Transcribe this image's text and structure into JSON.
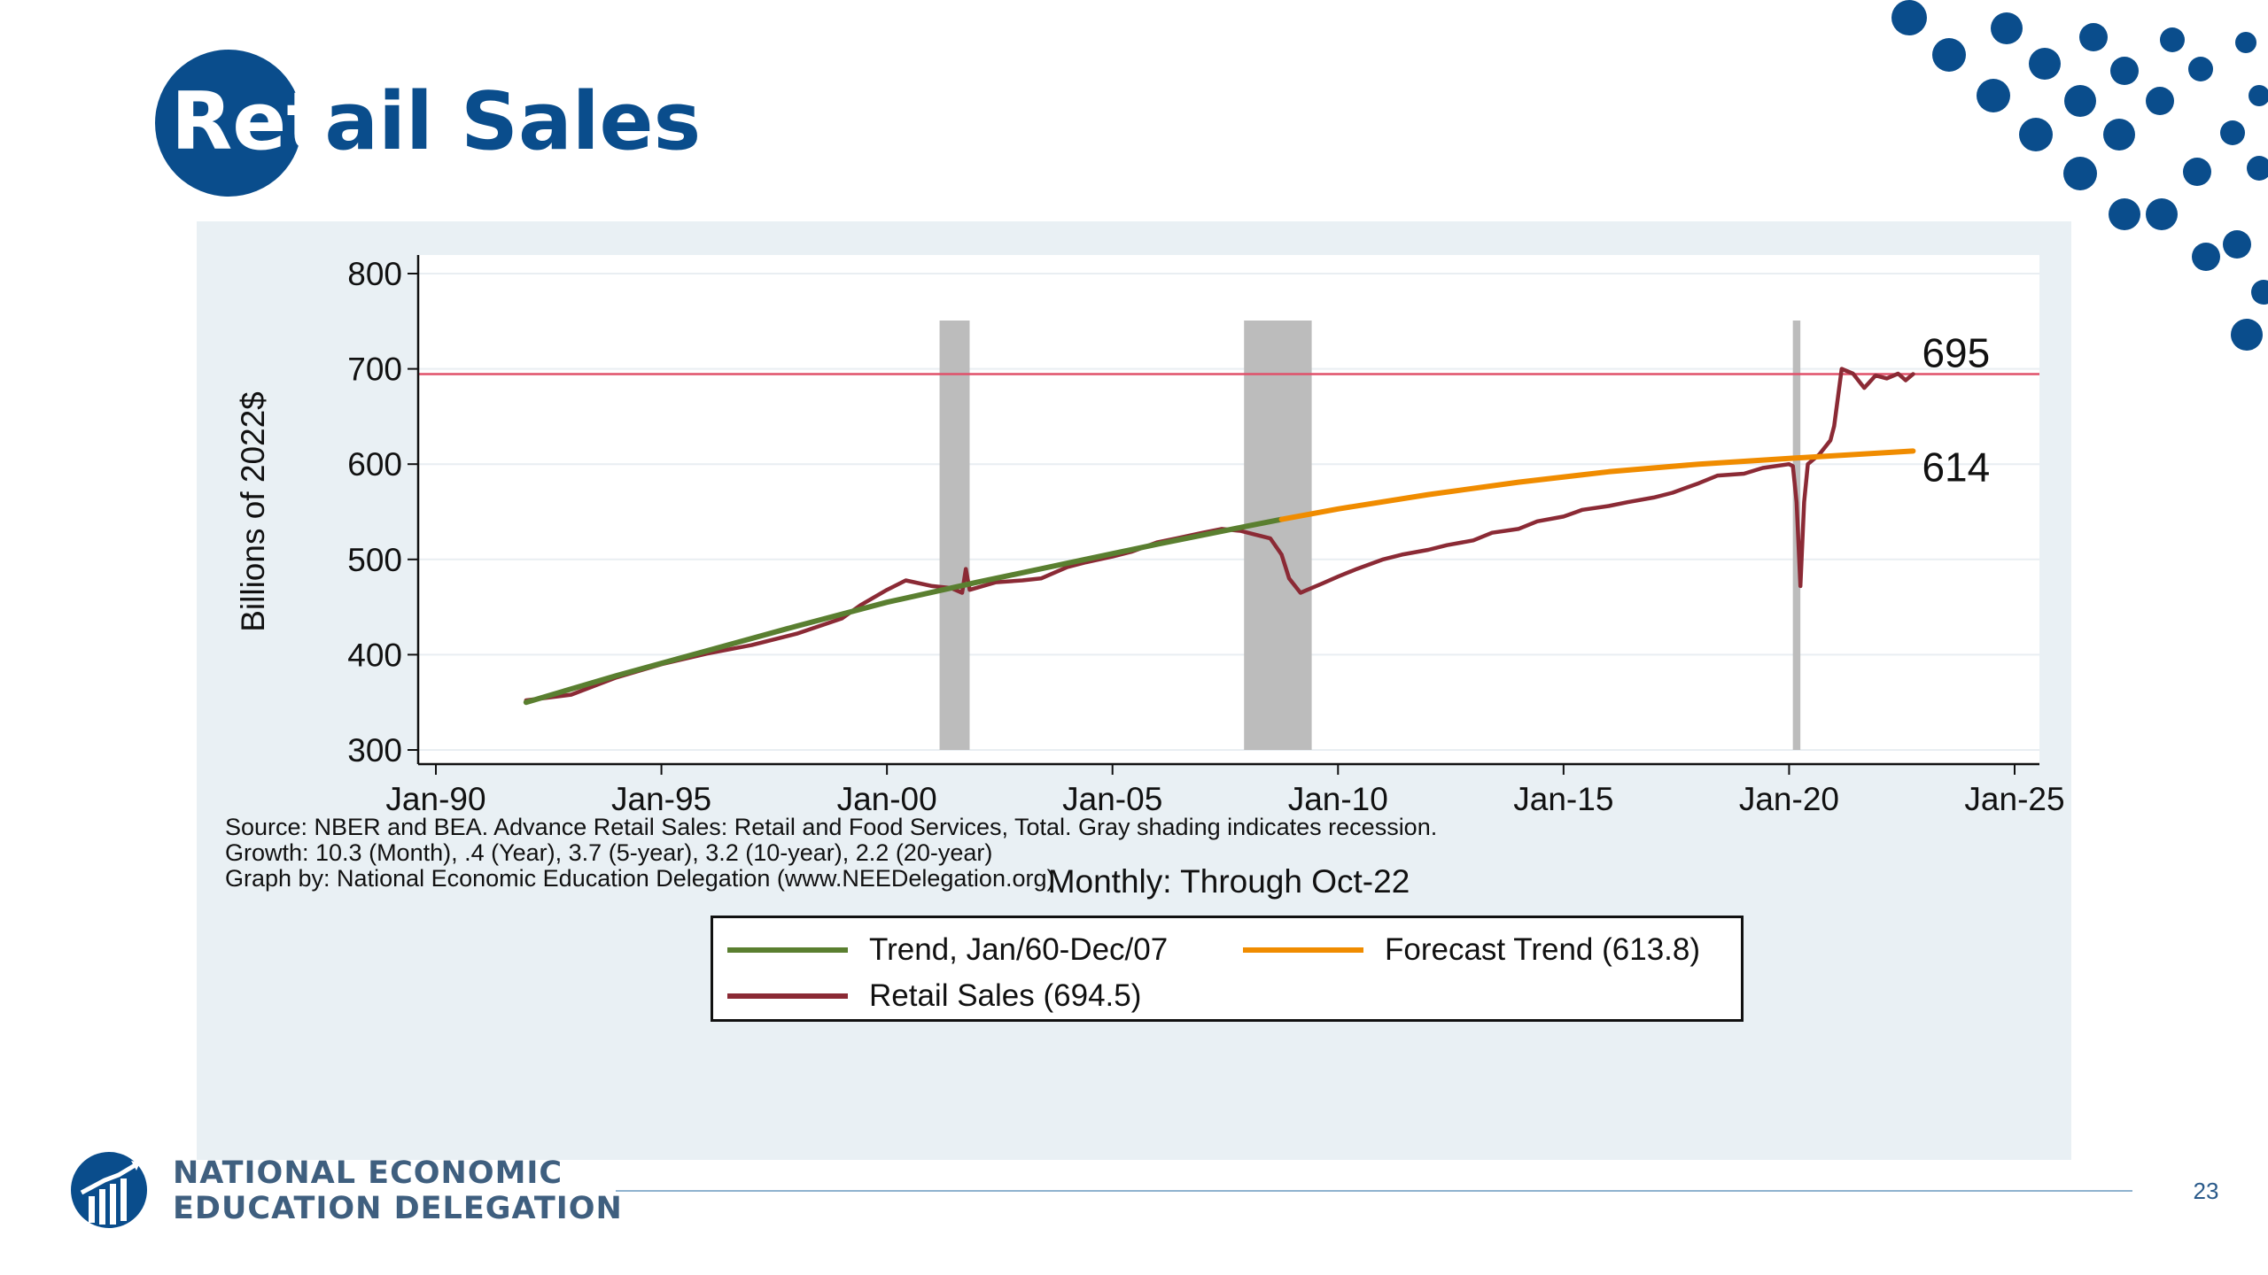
{
  "slide": {
    "title_highlight": "Ret",
    "title_rest": "ail Sales",
    "page_number": "23",
    "org_line_1": "NATIONAL ECONOMIC",
    "org_line_2": "EDUCATION DELEGATION"
  },
  "colors": {
    "brand_blue": "#0a4d8c",
    "panel_bg": "#e9f0f4",
    "trend": "#5a7f30",
    "forecast": "#f08c00",
    "retail": "#8b2a35",
    "recession": "#bcbcbc",
    "reference_line": "#e0506a"
  },
  "chart_data": {
    "type": "line",
    "title": "",
    "xlabel": "Monthly: Through Oct-22",
    "ylabel": "Billions of 2022$",
    "ylim": [
      300,
      800
    ],
    "y_ticks": [
      "300",
      "400",
      "500",
      "600",
      "700",
      "800"
    ],
    "xlim": [
      "1990-01",
      "2025-01"
    ],
    "x_ticks": [
      "Jan-90",
      "Jan-95",
      "Jan-00",
      "Jan-05",
      "Jan-10",
      "Jan-15",
      "Jan-20",
      "Jan-25"
    ],
    "grid": true,
    "legend_position": "bottom",
    "recessions": [
      {
        "start": "2001-03",
        "end": "2001-11"
      },
      {
        "start": "2007-12",
        "end": "2009-06"
      },
      {
        "start": "2020-02",
        "end": "2020-04"
      }
    ],
    "reference_lines": [
      {
        "y": 694.5
      }
    ],
    "end_labels": [
      {
        "text": "695",
        "x": "2022-10",
        "y": 694.5
      },
      {
        "text": "614",
        "x": "2022-10",
        "y": 613.8
      }
    ],
    "series": [
      {
        "name": "Trend, Jan/60-Dec/07",
        "x": [
          "1992-01",
          "1994-01",
          "1996-01",
          "1998-01",
          "2000-01",
          "2002-01",
          "2004-01",
          "2006-01",
          "2008-01",
          "2008-10"
        ],
        "values": [
          350,
          378,
          404,
          430,
          455,
          476,
          496,
          516,
          535,
          542
        ]
      },
      {
        "name": "Forecast Trend (613.8)",
        "x": [
          "2008-10",
          "2010-01",
          "2012-01",
          "2014-01",
          "2016-01",
          "2018-01",
          "2020-01",
          "2022-10"
        ],
        "values": [
          542,
          553,
          568,
          581,
          592,
          600,
          606,
          613.8
        ]
      },
      {
        "name": "Retail Sales (694.5)",
        "x": [
          "1992-01",
          "1993-01",
          "1994-01",
          "1995-01",
          "1996-01",
          "1997-01",
          "1998-01",
          "1999-01",
          "1999-06",
          "2000-01",
          "2000-06",
          "2001-01",
          "2001-06",
          "2001-09",
          "2001-10",
          "2001-11",
          "2002-06",
          "2003-01",
          "2003-06",
          "2004-01",
          "2004-06",
          "2005-01",
          "2005-06",
          "2006-01",
          "2006-06",
          "2007-01",
          "2007-06",
          "2007-11",
          "2008-03",
          "2008-07",
          "2008-10",
          "2008-12",
          "2009-03",
          "2009-06",
          "2009-09",
          "2010-01",
          "2010-06",
          "2011-01",
          "2011-06",
          "2012-01",
          "2012-06",
          "2013-01",
          "2013-06",
          "2014-01",
          "2014-06",
          "2015-01",
          "2015-06",
          "2016-01",
          "2016-06",
          "2017-01",
          "2017-06",
          "2018-01",
          "2018-06",
          "2019-01",
          "2019-06",
          "2020-01",
          "2020-02",
          "2020-03",
          "2020-04",
          "2020-05",
          "2020-06",
          "2020-09",
          "2020-12",
          "2021-01",
          "2021-03",
          "2021-06",
          "2021-09",
          "2021-12",
          "2022-03",
          "2022-06",
          "2022-08",
          "2022-10"
        ],
        "values": [
          352,
          358,
          376,
          390,
          401,
          410,
          422,
          438,
          452,
          468,
          478,
          472,
          470,
          465,
          490,
          468,
          476,
          478,
          480,
          492,
          497,
          503,
          508,
          518,
          522,
          528,
          532,
          530,
          526,
          522,
          505,
          480,
          465,
          470,
          475,
          482,
          490,
          500,
          505,
          510,
          515,
          520,
          528,
          532,
          540,
          545,
          552,
          556,
          560,
          565,
          570,
          580,
          588,
          590,
          596,
          600,
          598,
          560,
          472,
          560,
          600,
          610,
          625,
          640,
          700,
          695,
          680,
          693,
          690,
          695,
          688,
          694.5
        ]
      }
    ]
  }
}
